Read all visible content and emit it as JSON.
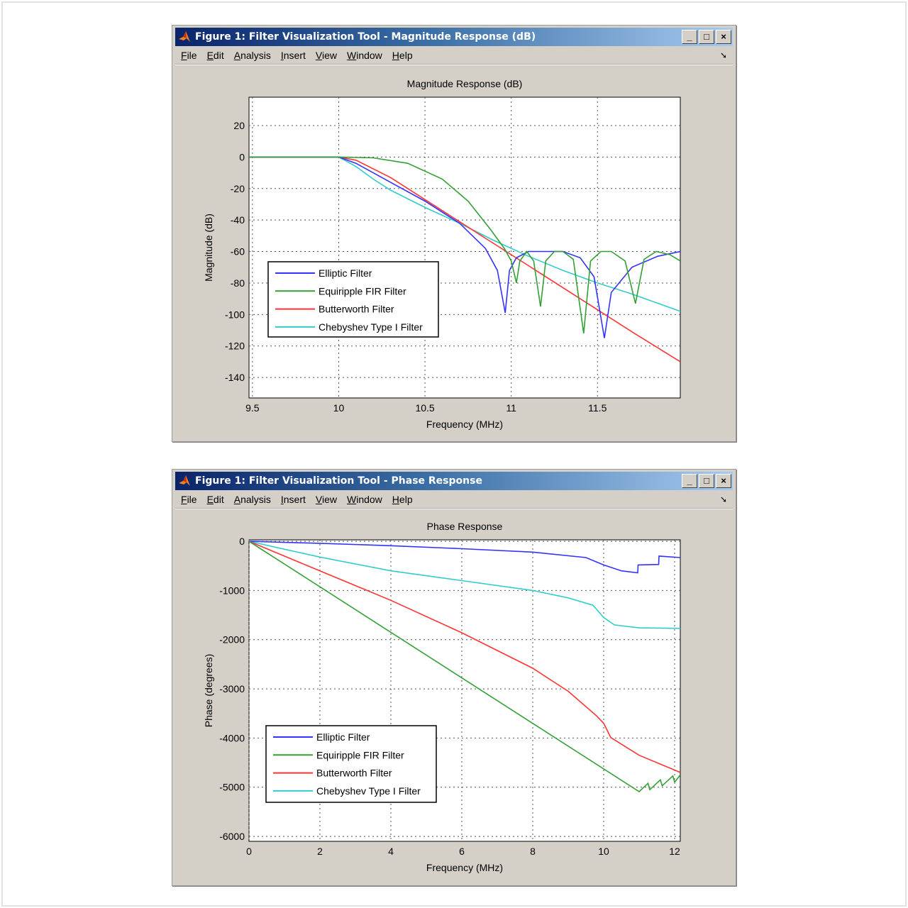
{
  "menu": [
    "File",
    "Edit",
    "Analysis",
    "Insert",
    "View",
    "Window",
    "Help"
  ],
  "window_buttons": {
    "minimize": "_",
    "maximize": "□",
    "close": "×"
  },
  "colors": {
    "elliptic": "#3333ff",
    "equiripple": "#33a033",
    "butterworth": "#ff3333",
    "chebyshev": "#33cccc"
  },
  "legend": [
    "Elliptic Filter",
    "Equiripple FIR Filter",
    "Butterworth Filter",
    "Chebyshev Type I Filter"
  ],
  "windows": [
    {
      "title": "Figure 1: Filter Visualization Tool - Magnitude Response (dB)"
    },
    {
      "title": "Figure 1: Filter Visualization Tool - Phase Response"
    }
  ],
  "chart_data": [
    {
      "type": "line",
      "title": "Magnitude Response (dB)",
      "xlabel": "Frequency (MHz)",
      "ylabel": "Magnitude (dB)",
      "xlim": [
        9.48,
        11.98
      ],
      "ylim": [
        -153,
        38
      ],
      "xticks": [
        9.5,
        10,
        10.5,
        11,
        11.5
      ],
      "xtick_labels": [
        "9.5",
        "10",
        "10.5",
        "11",
        "11.5"
      ],
      "yticks": [
        20,
        0,
        -20,
        -40,
        -60,
        -80,
        -100,
        -120,
        -140
      ],
      "ytick_labels": [
        "20",
        "0",
        "-20",
        "-40",
        "-60",
        "-80",
        "-100",
        "-120",
        "-140"
      ],
      "grid": true,
      "legend_position": "lower-left",
      "series": [
        {
          "name": "Elliptic Filter",
          "x": [
            9.48,
            10,
            10.1,
            10.3,
            10.5,
            10.7,
            10.85,
            10.92,
            10.965,
            10.99,
            11.03,
            11.1,
            11.3,
            11.4,
            11.48,
            11.54,
            11.58,
            11.7,
            11.85,
            11.98
          ],
          "y": [
            0,
            0,
            -4,
            -16,
            -28,
            -42,
            -58,
            -72,
            -99,
            -72,
            -64,
            -60,
            -60,
            -64,
            -76,
            -115,
            -86,
            -70,
            -63,
            -60
          ]
        },
        {
          "name": "Equiripple FIR Filter",
          "x": [
            9.48,
            10,
            10.2,
            10.4,
            10.6,
            10.75,
            10.88,
            10.96,
            11.0,
            11.03,
            11.05,
            11.09,
            11.13,
            11.17,
            11.2,
            11.25,
            11.3,
            11.36,
            11.42,
            11.46,
            11.52,
            11.58,
            11.66,
            11.72,
            11.77,
            11.84,
            11.92,
            11.98
          ],
          "y": [
            0,
            0,
            -0.5,
            -4,
            -14,
            -28,
            -46,
            -58,
            -66,
            -80,
            -66,
            -60,
            -66,
            -95,
            -66,
            -60,
            -60,
            -65,
            -112,
            -66,
            -60,
            -60,
            -66,
            -93,
            -65,
            -60,
            -62,
            -66
          ]
        },
        {
          "name": "Butterworth Filter",
          "x": [
            9.48,
            10,
            10.1,
            10.3,
            10.5,
            10.7,
            10.9,
            11.1,
            11.3,
            11.5,
            11.7,
            11.98
          ],
          "y": [
            0,
            0,
            -2,
            -13,
            -27,
            -41,
            -55,
            -69,
            -83,
            -97,
            -111,
            -130
          ]
        },
        {
          "name": "Chebyshev Type I Filter",
          "x": [
            9.48,
            10,
            10.1,
            10.2,
            10.3,
            10.5,
            10.7,
            10.9,
            11.1,
            11.3,
            11.5,
            11.7,
            11.98
          ],
          "y": [
            0,
            0,
            -6,
            -14,
            -21,
            -32,
            -42,
            -53,
            -63,
            -72,
            -80,
            -87,
            -98
          ]
        }
      ]
    },
    {
      "type": "line",
      "title": "Phase Response",
      "xlabel": "Frequency (MHz)",
      "ylabel": "Phase (degrees)",
      "xlim": [
        0,
        12.16
      ],
      "ylim": [
        -6100,
        30
      ],
      "xticks": [
        0,
        2,
        4,
        6,
        8,
        10,
        12
      ],
      "xtick_labels": [
        "0",
        "2",
        "4",
        "6",
        "8",
        "10",
        "12"
      ],
      "yticks": [
        0,
        -1000,
        -2000,
        -3000,
        -4000,
        -5000,
        -6000
      ],
      "ytick_labels": [
        "0",
        "-1000",
        "-2000",
        "-3000",
        "-4000",
        "-5000",
        "-6000"
      ],
      "grid": true,
      "legend_position": "lower-left",
      "series": [
        {
          "name": "Elliptic Filter",
          "x": [
            0,
            2,
            4,
            6,
            8,
            9.5,
            10,
            10.5,
            10.96,
            10.97,
            11.55,
            11.56,
            12.16
          ],
          "y": [
            0,
            -40,
            -90,
            -150,
            -220,
            -330,
            -480,
            -600,
            -640,
            -480,
            -470,
            -300,
            -330
          ]
        },
        {
          "name": "Equiripple FIR Filter",
          "x": [
            0,
            11.0,
            11.25,
            11.3,
            11.6,
            11.65,
            11.95,
            12.0,
            12.16
          ],
          "y": [
            0,
            -5090,
            -4920,
            -5050,
            -4850,
            -4970,
            -4770,
            -4900,
            -4750
          ]
        },
        {
          "name": "Butterworth Filter",
          "x": [
            0,
            2,
            4,
            6,
            8,
            9,
            9.8,
            10,
            10.2,
            11,
            12.16
          ],
          "y": [
            0,
            -600,
            -1200,
            -1860,
            -2580,
            -3050,
            -3550,
            -3700,
            -3990,
            -4350,
            -4700
          ]
        },
        {
          "name": "Chebyshev Type I Filter",
          "x": [
            0,
            2,
            4,
            6,
            8,
            9,
            9.7,
            10,
            10.3,
            11,
            12.16
          ],
          "y": [
            0,
            -320,
            -600,
            -800,
            -1000,
            -1150,
            -1300,
            -1550,
            -1700,
            -1760,
            -1770
          ]
        }
      ]
    }
  ]
}
